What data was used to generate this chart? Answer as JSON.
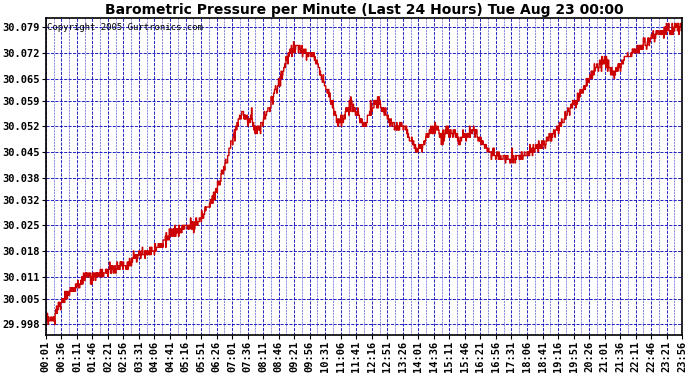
{
  "title": "Barometric Pressure per Minute (Last 24 Hours) Tue Aug 23 00:00",
  "copyright": "Copyright 2005 Gurtronics.com",
  "ylabel_values": [
    29.998,
    30.005,
    30.011,
    30.018,
    30.025,
    30.032,
    30.038,
    30.045,
    30.052,
    30.059,
    30.065,
    30.072,
    30.079
  ],
  "ylim": [
    29.995,
    30.0815
  ],
  "line_color": "#cc0000",
  "bg_color": "#ffffff",
  "grid_color": "#0000bb",
  "border_color": "#000000",
  "title_fontsize": 10,
  "copyright_fontsize": 6.5,
  "tick_fontsize": 7.5,
  "x_tick_labels": [
    "00:01",
    "00:36",
    "01:11",
    "01:46",
    "02:21",
    "02:56",
    "03:31",
    "04:06",
    "04:41",
    "05:16",
    "05:51",
    "06:26",
    "07:01",
    "07:36",
    "08:11",
    "08:46",
    "09:21",
    "09:56",
    "10:31",
    "11:06",
    "11:41",
    "12:16",
    "12:51",
    "13:26",
    "14:01",
    "14:36",
    "15:11",
    "15:46",
    "16:21",
    "16:56",
    "17:31",
    "18:06",
    "18:41",
    "19:16",
    "19:51",
    "20:26",
    "21:01",
    "21:36",
    "22:11",
    "22:46",
    "23:21",
    "23:56"
  ]
}
